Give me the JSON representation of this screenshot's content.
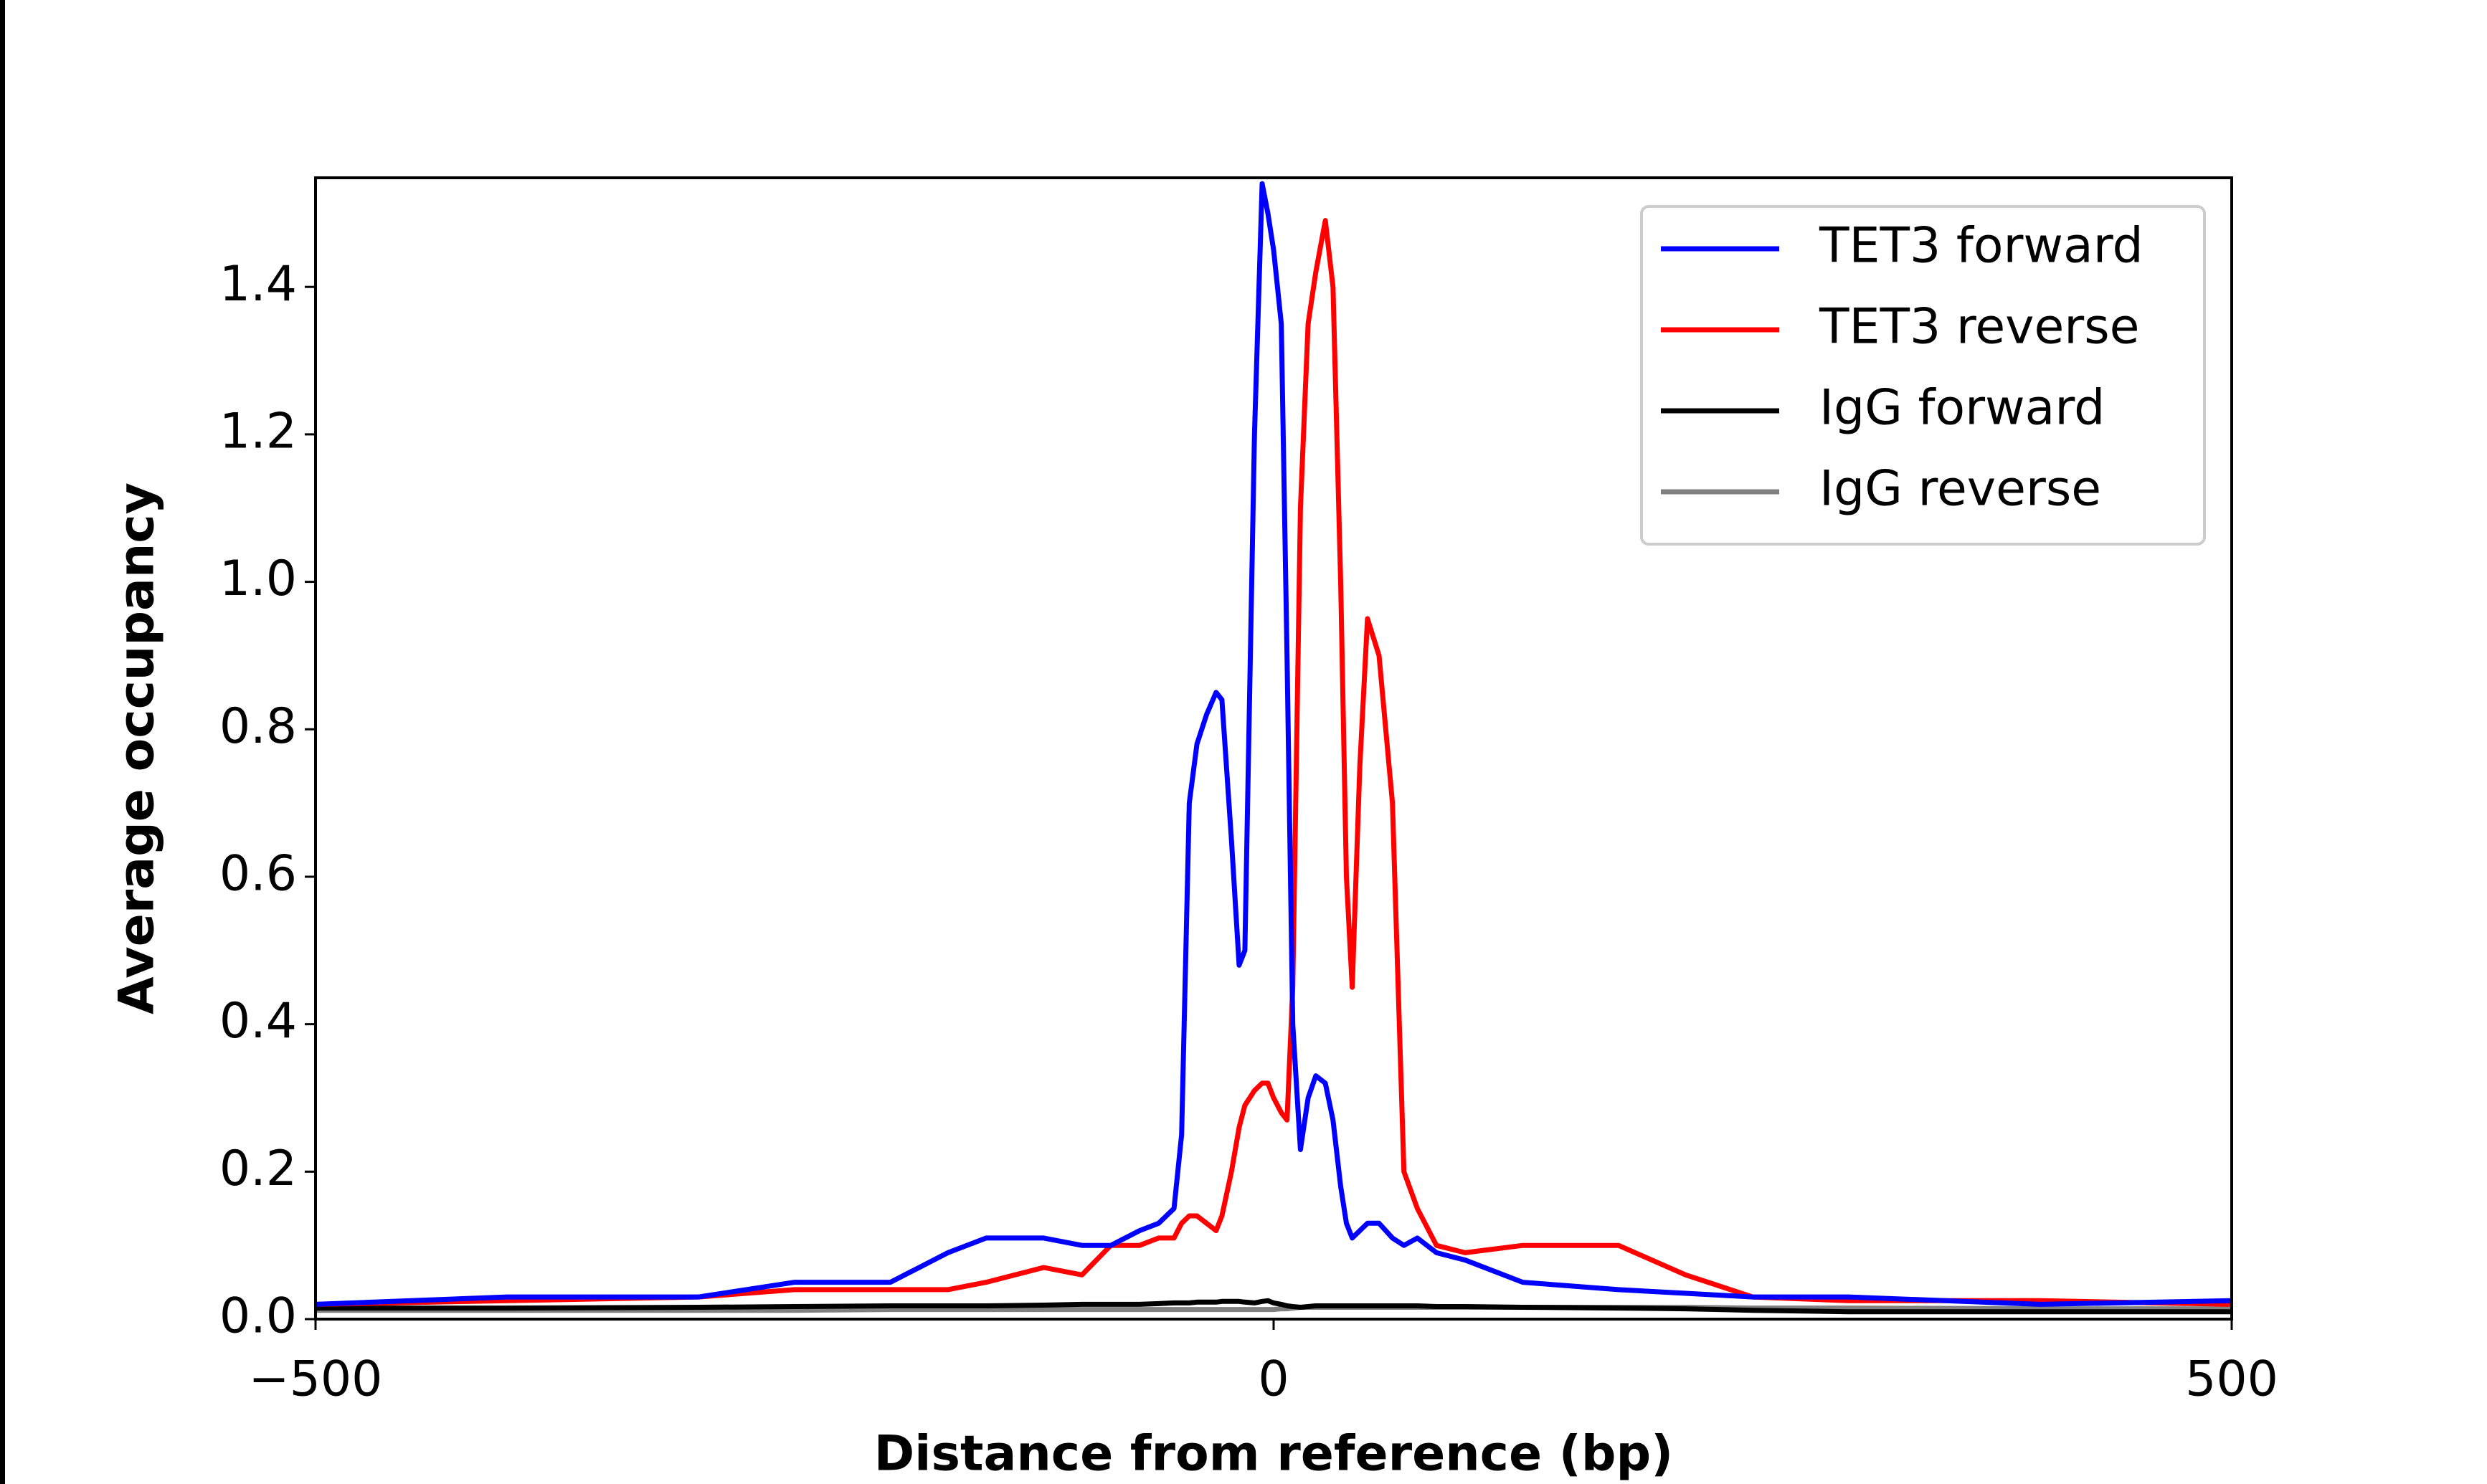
{
  "chart_data": {
    "type": "line",
    "xlabel": "Distance from reference (bp)",
    "ylabel": "Average occupancy",
    "x": [
      -500,
      -400,
      -300,
      -250,
      -200,
      -170,
      -150,
      -120,
      -100,
      -85,
      -70,
      -60,
      -52,
      -48,
      -44,
      -40,
      -35,
      -30,
      -27,
      -22,
      -18,
      -15,
      -10,
      -6,
      -3,
      0,
      4,
      7,
      10,
      14,
      18,
      22,
      27,
      31,
      35,
      38,
      41,
      45,
      49,
      55,
      62,
      68,
      75,
      85,
      100,
      130,
      180,
      215,
      250,
      300,
      400,
      500
    ],
    "series": [
      {
        "name": "TET3 forward",
        "color": "#0000ff",
        "values": [
          0.02,
          0.03,
          0.03,
          0.05,
          0.05,
          0.09,
          0.11,
          0.11,
          0.1,
          0.1,
          0.12,
          0.13,
          0.15,
          0.25,
          0.7,
          0.78,
          0.82,
          0.85,
          0.84,
          0.65,
          0.48,
          0.5,
          1.2,
          1.54,
          1.5,
          1.45,
          1.35,
          0.9,
          0.4,
          0.23,
          0.3,
          0.33,
          0.32,
          0.27,
          0.18,
          0.13,
          0.11,
          0.12,
          0.13,
          0.13,
          0.11,
          0.1,
          0.11,
          0.09,
          0.08,
          0.05,
          0.04,
          0.035,
          0.03,
          0.03,
          0.02,
          0.025
        ]
      },
      {
        "name": "TET3 reverse",
        "color": "#ff0000",
        "values": [
          0.02,
          0.025,
          0.03,
          0.04,
          0.04,
          0.04,
          0.05,
          0.07,
          0.06,
          0.1,
          0.1,
          0.11,
          0.11,
          0.13,
          0.14,
          0.14,
          0.13,
          0.12,
          0.14,
          0.2,
          0.26,
          0.29,
          0.31,
          0.32,
          0.32,
          0.3,
          0.28,
          0.27,
          0.45,
          1.1,
          1.35,
          1.42,
          1.49,
          1.4,
          1.0,
          0.6,
          0.45,
          0.75,
          0.95,
          0.9,
          0.7,
          0.2,
          0.15,
          0.1,
          0.09,
          0.1,
          0.1,
          0.06,
          0.03,
          0.025,
          0.025,
          0.02
        ]
      },
      {
        "name": "IgG forward",
        "color": "#000000",
        "values": [
          0.015,
          0.015,
          0.016,
          0.017,
          0.018,
          0.018,
          0.018,
          0.019,
          0.02,
          0.02,
          0.02,
          0.021,
          0.022,
          0.022,
          0.022,
          0.023,
          0.023,
          0.023,
          0.024,
          0.024,
          0.024,
          0.023,
          0.022,
          0.024,
          0.025,
          0.022,
          0.02,
          0.018,
          0.017,
          0.016,
          0.017,
          0.018,
          0.018,
          0.018,
          0.018,
          0.018,
          0.018,
          0.018,
          0.018,
          0.018,
          0.018,
          0.018,
          0.018,
          0.017,
          0.017,
          0.016,
          0.015,
          0.014,
          0.012,
          0.01,
          0.01,
          0.01
        ]
      },
      {
        "name": "IgG reverse",
        "color": "#808080",
        "values": [
          0.012,
          0.012,
          0.012,
          0.012,
          0.013,
          0.013,
          0.013,
          0.013,
          0.013,
          0.013,
          0.013,
          0.013,
          0.013,
          0.013,
          0.013,
          0.013,
          0.013,
          0.013,
          0.013,
          0.013,
          0.013,
          0.013,
          0.013,
          0.013,
          0.013,
          0.013,
          0.014,
          0.014,
          0.015,
          0.016,
          0.016,
          0.016,
          0.016,
          0.016,
          0.016,
          0.016,
          0.016,
          0.016,
          0.016,
          0.016,
          0.016,
          0.016,
          0.016,
          0.016,
          0.016,
          0.016,
          0.016,
          0.016,
          0.015,
          0.015,
          0.014,
          0.014
        ]
      }
    ],
    "xlim": [
      -500,
      500
    ],
    "xticks": [
      {
        "value": -500,
        "label": "−500"
      },
      0,
      500
    ],
    "ylim": [
      0,
      1.548
    ],
    "yticks": [
      {
        "value": 0,
        "label": "0.0"
      },
      0.2,
      0.4,
      0.6,
      0.8,
      {
        "value": 1,
        "label": "1.0"
      },
      1.2,
      1.4
    ],
    "legend": "upper right"
  }
}
